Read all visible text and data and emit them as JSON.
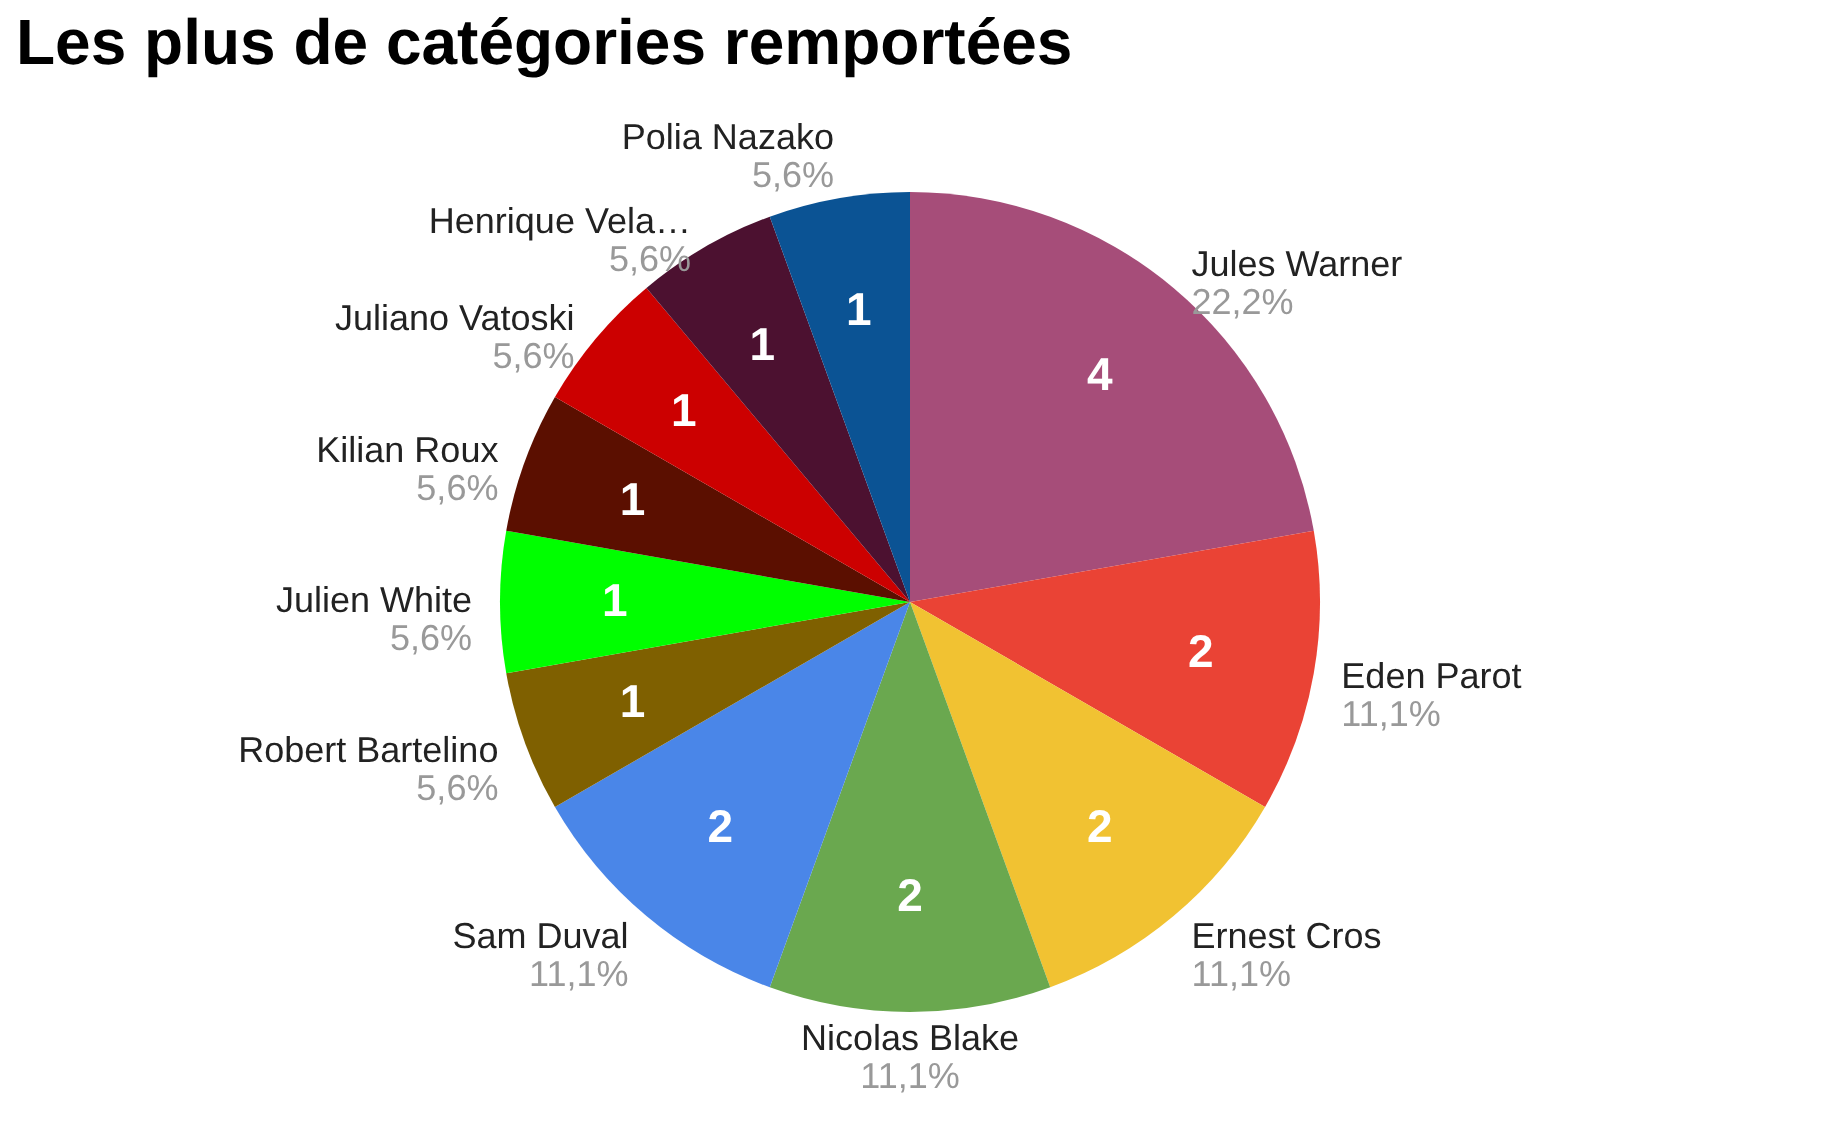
{
  "chart_data": {
    "type": "pie",
    "title": "Les plus de catégories remportées",
    "categories": [
      "Jules Warner",
      "Eden Parot",
      "Ernest Cros",
      "Nicolas Blake",
      "Sam Duval",
      "Robert Bartelino",
      "Julien White",
      "Kilian Roux",
      "Juliano Vatoski",
      "Henrique Vela…",
      "Polia Nazako"
    ],
    "values": [
      4,
      2,
      2,
      2,
      2,
      1,
      1,
      1,
      1,
      1,
      1
    ],
    "colors": [
      "#a64d79",
      "#ea4335",
      "#f1c232",
      "#6aa84f",
      "#4a86e8",
      "#7f6000",
      "#00ff00",
      "#5b0f00",
      "#cc0000",
      "#4c1130",
      "#0b5394"
    ],
    "annotations": [
      {
        "text": "22,2%",
        "x": "Jules Warner"
      },
      {
        "text": "11,1%",
        "x": "Eden Parot"
      },
      {
        "text": "11,1%",
        "x": "Ernest Cros"
      },
      {
        "text": "11,1%",
        "x": "Nicolas Blake"
      },
      {
        "text": "11,1%",
        "x": "Sam Duval"
      },
      {
        "text": "5,6%",
        "x": "Robert Bartelino"
      },
      {
        "text": "5,6%",
        "x": "Julien White"
      },
      {
        "text": "5,6%",
        "x": "Kilian Roux"
      },
      {
        "text": "5,6%",
        "x": "Juliano Vatoski"
      },
      {
        "text": "5,6%",
        "x": "Henrique Vela…"
      },
      {
        "text": "5,6%",
        "x": "Polia Nazako"
      }
    ],
    "data_labels": true
  }
}
